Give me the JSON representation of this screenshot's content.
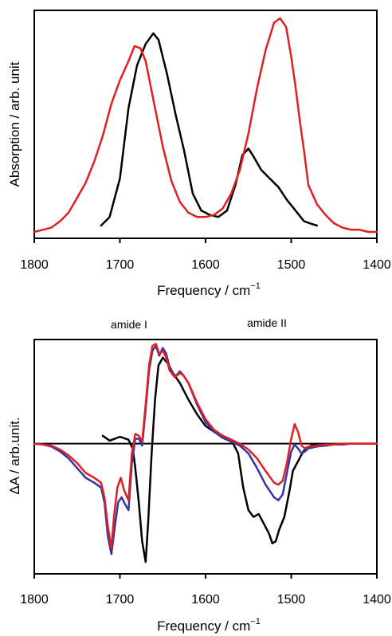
{
  "chart_data": [
    {
      "type": "line",
      "xlabel": "Frequency / cm",
      "xlabel_sup": "−1",
      "ylabel": "Absorption / arb. unit",
      "xlim": [
        1800,
        1400
      ],
      "x_reversed": true,
      "ylim": [
        0,
        1.0
      ],
      "xticks": [
        "1800",
        "1700",
        "1600",
        "1500",
        "1400"
      ],
      "y_tick_labels_shown": false,
      "grid": false,
      "legend": "none",
      "series": [
        {
          "color": "#000000",
          "x": [
            1722,
            1712,
            1700,
            1690,
            1680,
            1670,
            1661,
            1655,
            1645,
            1635,
            1625,
            1615,
            1605,
            1595,
            1585,
            1575,
            1565,
            1557,
            1550,
            1545,
            1535,
            1525,
            1515,
            1505,
            1495,
            1485,
            1478,
            1470
          ],
          "y": [
            0.03,
            0.07,
            0.25,
            0.58,
            0.78,
            0.88,
            0.93,
            0.9,
            0.74,
            0.55,
            0.38,
            0.18,
            0.1,
            0.08,
            0.07,
            0.1,
            0.22,
            0.36,
            0.39,
            0.36,
            0.29,
            0.25,
            0.21,
            0.15,
            0.1,
            0.05,
            0.04,
            0.03
          ]
        },
        {
          "color": "#e02020",
          "x": [
            1800,
            1790,
            1780,
            1770,
            1760,
            1750,
            1740,
            1730,
            1720,
            1710,
            1700,
            1690,
            1683,
            1676,
            1670,
            1660,
            1650,
            1640,
            1630,
            1620,
            1610,
            1600,
            1590,
            1580,
            1570,
            1560,
            1550,
            1540,
            1530,
            1520,
            1513,
            1506,
            1500,
            1495,
            1490,
            1485,
            1480,
            1470,
            1460,
            1450,
            1440,
            1430,
            1420,
            1410,
            1400
          ],
          "y": [
            0.0,
            0.01,
            0.02,
            0.05,
            0.09,
            0.16,
            0.23,
            0.33,
            0.45,
            0.6,
            0.71,
            0.8,
            0.87,
            0.86,
            0.8,
            0.6,
            0.4,
            0.24,
            0.14,
            0.09,
            0.07,
            0.07,
            0.08,
            0.11,
            0.18,
            0.29,
            0.46,
            0.67,
            0.85,
            0.98,
            1.0,
            0.96,
            0.82,
            0.68,
            0.52,
            0.38,
            0.22,
            0.13,
            0.08,
            0.04,
            0.02,
            0.01,
            0.01,
            0.0,
            0.0
          ]
        }
      ]
    },
    {
      "type": "line",
      "title_annotations": [
        "amide I",
        "amide II"
      ],
      "xlabel": "Frequency / cm",
      "xlabel_sup": "−1",
      "ylabel": "ΔA / arb.unit.",
      "xlim": [
        1800,
        1400
      ],
      "x_reversed": true,
      "ylim": [
        -1.3,
        1.0
      ],
      "xticks": [
        "1800",
        "1700",
        "1600",
        "1500",
        "1400"
      ],
      "y_tick_labels_shown": false,
      "zero_line": true,
      "grid": false,
      "legend": "none",
      "series": [
        {
          "color": "#000000",
          "x": [
            1720,
            1712,
            1700,
            1690,
            1685,
            1682,
            1678,
            1674,
            1670,
            1667,
            1663,
            1659,
            1655,
            1650,
            1644,
            1638,
            1630,
            1620,
            1610,
            1600,
            1590,
            1580,
            1570,
            1562,
            1556,
            1550,
            1544,
            1538,
            1532,
            1526,
            1522,
            1518,
            1514,
            1508,
            1502,
            1498,
            1492,
            1486,
            1480,
            1475,
            1470
          ],
          "y": [
            0.08,
            0.03,
            0.07,
            0.04,
            -0.05,
            -0.25,
            -0.6,
            -1.0,
            -1.21,
            -0.8,
            -0.1,
            0.45,
            0.8,
            0.88,
            0.82,
            0.72,
            0.62,
            0.45,
            0.3,
            0.18,
            0.12,
            0.08,
            0.04,
            -0.1,
            -0.45,
            -0.68,
            -0.75,
            -0.72,
            -0.82,
            -0.92,
            -1.02,
            -1.0,
            -0.88,
            -0.75,
            -0.48,
            -0.28,
            -0.18,
            -0.08,
            -0.04,
            -0.01,
            0.0
          ]
        },
        {
          "color": "#3434a8",
          "x": [
            1800,
            1790,
            1780,
            1770,
            1760,
            1750,
            1740,
            1730,
            1722,
            1718,
            1714,
            1710,
            1706,
            1702,
            1698,
            1694,
            1690,
            1686,
            1682,
            1678,
            1674,
            1670,
            1666,
            1662,
            1658,
            1654,
            1650,
            1646,
            1642,
            1636,
            1630,
            1626,
            1620,
            1610,
            1600,
            1590,
            1580,
            1570,
            1560,
            1550,
            1540,
            1530,
            1520,
            1515,
            1510,
            1505,
            1500,
            1496,
            1492,
            1488,
            1484,
            1480,
            1470,
            1460,
            1450,
            1440,
            1430,
            1420,
            1410,
            1400
          ],
          "y": [
            0.0,
            -0.01,
            -0.03,
            -0.08,
            -0.15,
            -0.25,
            -0.35,
            -0.4,
            -0.45,
            -0.6,
            -0.95,
            -1.13,
            -0.85,
            -0.6,
            -0.55,
            -0.62,
            -0.68,
            -0.2,
            0.05,
            0.05,
            -0.02,
            0.35,
            0.75,
            0.95,
            1.0,
            0.9,
            0.98,
            0.92,
            0.78,
            0.68,
            0.74,
            0.7,
            0.62,
            0.4,
            0.22,
            0.12,
            0.06,
            0.02,
            -0.02,
            -0.1,
            -0.25,
            -0.42,
            -0.55,
            -0.58,
            -0.52,
            -0.3,
            -0.08,
            -0.01,
            -0.05,
            -0.1,
            -0.08,
            -0.05,
            -0.03,
            -0.02,
            -0.01,
            -0.01,
            0.0,
            0.0,
            0.0,
            0.0
          ]
        },
        {
          "color": "#e02020",
          "x": [
            1800,
            1790,
            1780,
            1770,
            1760,
            1750,
            1740,
            1730,
            1722,
            1718,
            1714,
            1710,
            1707,
            1703,
            1699,
            1695,
            1690,
            1686,
            1682,
            1678,
            1674,
            1670,
            1666,
            1662,
            1658,
            1654,
            1650,
            1646,
            1642,
            1636,
            1630,
            1626,
            1620,
            1610,
            1600,
            1590,
            1580,
            1570,
            1560,
            1550,
            1540,
            1530,
            1520,
            1515,
            1510,
            1505,
            1500,
            1496,
            1492,
            1488,
            1484,
            1480,
            1470,
            1460,
            1450,
            1440,
            1430,
            1420,
            1410,
            1400
          ],
          "y": [
            0.0,
            -0.01,
            -0.02,
            -0.06,
            -0.12,
            -0.2,
            -0.3,
            -0.35,
            -0.4,
            -0.55,
            -0.85,
            -1.07,
            -0.75,
            -0.45,
            -0.35,
            -0.48,
            -0.58,
            -0.1,
            0.1,
            0.08,
            0.02,
            0.4,
            0.8,
            1.0,
            1.02,
            0.92,
            0.95,
            0.88,
            0.75,
            0.68,
            0.72,
            0.7,
            0.62,
            0.42,
            0.25,
            0.14,
            0.08,
            0.04,
            0.0,
            -0.06,
            -0.15,
            -0.28,
            -0.4,
            -0.42,
            -0.38,
            -0.2,
            0.05,
            0.2,
            0.12,
            -0.02,
            -0.05,
            -0.03,
            -0.02,
            -0.01,
            -0.01,
            0.0,
            0.0,
            0.0,
            0.0,
            0.0
          ]
        }
      ]
    }
  ]
}
